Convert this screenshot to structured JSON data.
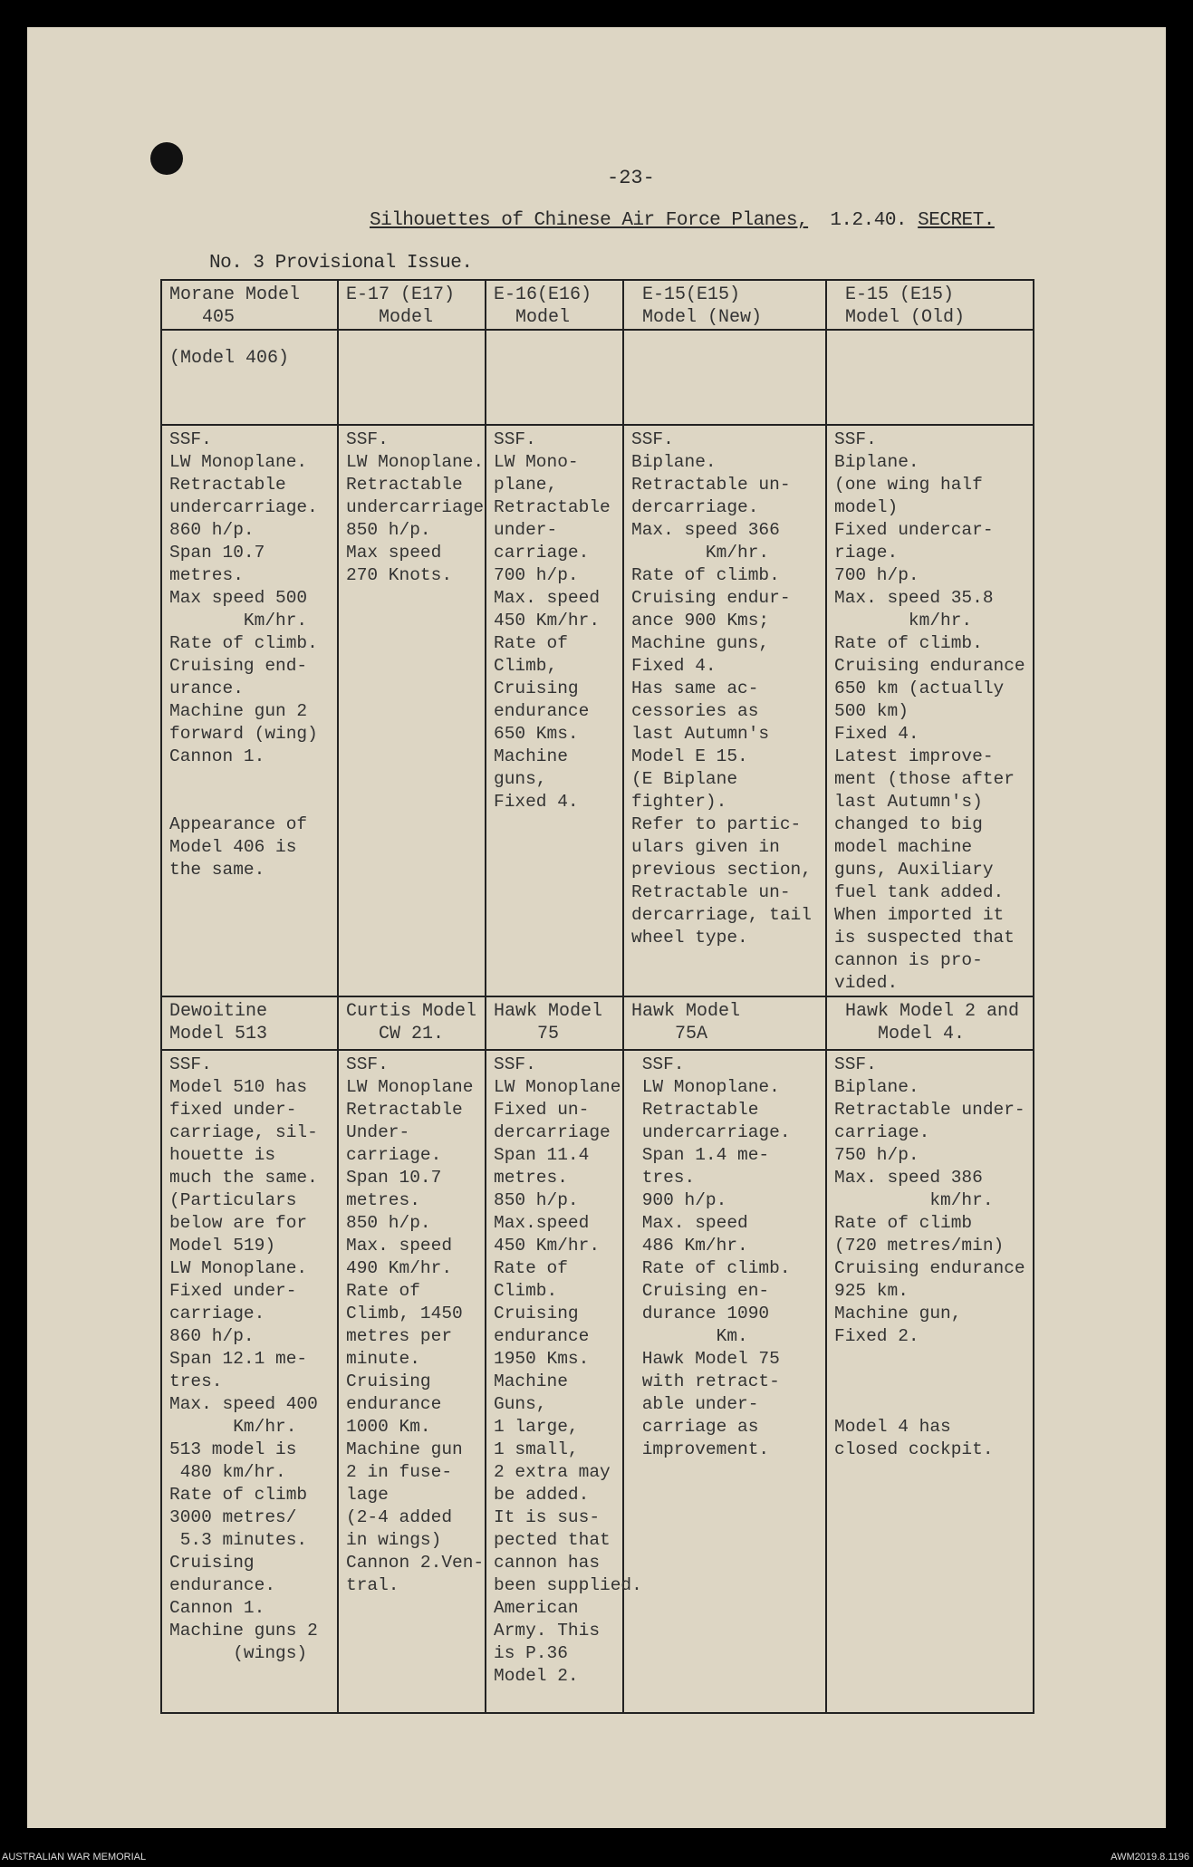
{
  "page_number": "-23-",
  "title": {
    "main": "Silhouettes of Chinese Air Force Planes,",
    "date": "1.2.40.",
    "classification": "SECRET."
  },
  "issue": "No. 3 Provisional Issue.",
  "table": {
    "section1": {
      "headers": [
        "Morane Model\n   405",
        "E-17 (E17)\n   Model",
        "E-16(E16)\n  Model",
        " E-15(E15)\n Model (New)",
        " E-15 (E15)\n Model (Old)"
      ],
      "subheaders": [
        "(Model 406)",
        "",
        "",
        "",
        ""
      ],
      "cells": [
        "SSF.\nLW Monoplane.\nRetractable\nundercarriage.\n860 h/p.\nSpan 10.7\nmetres.\nMax speed 500\n       Km/hr.\nRate of climb.\nCruising end-\nurance.\nMachine gun 2\nforward (wing)\nCannon 1.\n\n\nAppearance of\nModel 406 is\nthe same.",
        "SSF.\nLW Monoplane.\nRetractable\nundercarriage\n850 h/p.\nMax speed\n270 Knots.",
        "SSF.\nLW Mono-\nplane,\nRetractable\nunder-\ncarriage.\n700 h/p.\nMax. speed\n450 Km/hr.\nRate of\nClimb,\nCruising\nendurance\n650 Kms.\nMachine\nguns,\nFixed 4.",
        "SSF.\nBiplane.\nRetractable un-\ndercarriage.\nMax. speed 366\n       Km/hr.\nRate of climb.\nCruising endur-\nance 900 Kms;\nMachine guns,\nFixed 4.\nHas same ac-\ncessories as\nlast Autumn's\nModel E 15.\n(E Biplane\nfighter).\nRefer to partic-\nulars given in\nprevious section,\nRetractable un-\ndercarriage, tail\nwheel type.",
        "SSF.\nBiplane.\n(one wing half\nmodel)\nFixed undercar-\nriage.\n700 h/p.\nMax. speed 35.8\n       km/hr.\nRate of climb.\nCruising endurance\n650 km (actually\n500 km)\nFixed 4.\nLatest improve-\nment (those after\nlast Autumn's)\nchanged to big\nmodel machine\nguns, Auxiliary\nfuel tank added.\nWhen imported it\nis suspected that\ncannon is pro-\nvided."
      ]
    },
    "section2": {
      "headers": [
        "Dewoitine\nModel 513",
        "Curtis Model\n   CW 21.",
        "Hawk Model\n    75",
        "Hawk Model\n    75A",
        " Hawk Model 2 and\n    Model 4."
      ],
      "cells": [
        "SSF.\nModel 510 has\nfixed under-\ncarriage, sil-\nhouette is\nmuch the same.\n(Particulars\nbelow are for\nModel 519)\nLW Monoplane.\nFixed under-\ncarriage.\n860 h/p.\nSpan 12.1 me-\ntres.\nMax. speed 400\n      Km/hr.\n513 model is\n 480 km/hr.\nRate of climb\n3000 metres/\n 5.3 minutes.\nCruising\nendurance.\nCannon 1.\nMachine guns 2\n      (wings)",
        "SSF.\nLW Monoplane\nRetractable\nUnder-\ncarriage.\nSpan 10.7\nmetres.\n850 h/p.\nMax. speed\n490 Km/hr.\nRate of\nClimb, 1450\nmetres per\nminute.\nCruising\nendurance\n1000 Km.\nMachine gun\n2 in fuse-\nlage\n(2-4 added\nin wings)\nCannon 2.Ven-\ntral.",
        "SSF.\nLW Monoplane\nFixed un-\ndercarriage\nSpan 11.4\nmetres.\n850 h/p.\nMax.speed\n450 Km/hr.\nRate of\nClimb.\nCruising\nendurance\n1950 Kms.\nMachine\nGuns,\n1 large,\n1 small,\n2 extra may\nbe added.\nIt is sus-\npected that\ncannon has\nbeen supplied.\nAmerican\nArmy. This\nis P.36\nModel 2.",
        " SSF.\n LW Monoplane.\n Retractable\n undercarriage.\n Span 1.4 me-\n tres.\n 900 h/p.\n Max. speed\n 486 Km/hr.\n Rate of climb.\n Cruising en-\n durance 1090\n        Km.\n Hawk Model 75\n with retract-\n able under-\n carriage as\n improvement.",
        "SSF.\nBiplane.\nRetractable under-\ncarriage.\n750 h/p.\nMax. speed 386\n         km/hr.\nRate of climb\n(720 metres/min)\nCruising endurance\n925 km.\nMachine gun,\nFixed 2.\n\n\n\nModel 4 has\nclosed cockpit."
      ]
    }
  },
  "footer": {
    "left": "AUSTRALIAN WAR MEMORIAL",
    "right": "AWM2019.8.1196"
  },
  "colors": {
    "paper": "#ddd6c4",
    "ink": "#333333",
    "background": "#000000"
  }
}
